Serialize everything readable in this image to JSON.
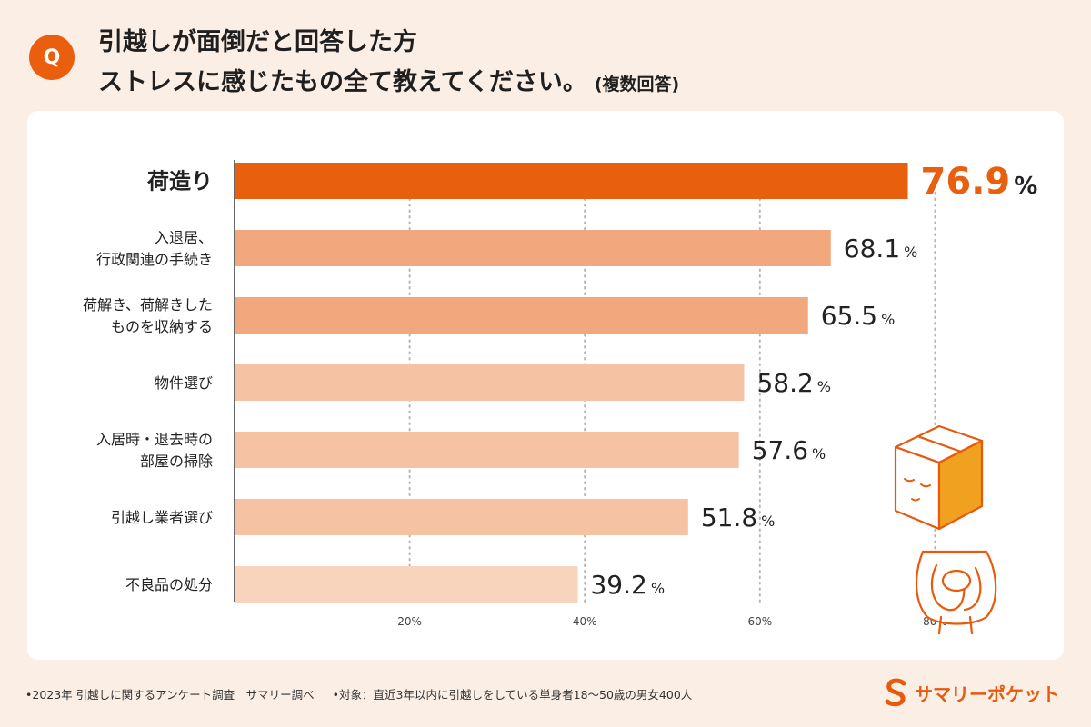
{
  "question": {
    "badge": "Q",
    "line1": "引越しが面倒だと回答した方",
    "line2": "ストレスに感じたもの全て教えてください。",
    "note": "(複数回答)"
  },
  "chart_data": {
    "type": "bar",
    "orientation": "horizontal",
    "title": "引越しが面倒だと回答した方 ストレスに感じたもの全て教えてください。(複数回答)",
    "categories": [
      [
        "荷造り"
      ],
      [
        "入退居、",
        "行政関連の手続き"
      ],
      [
        "荷解き、荷解きした",
        "ものを収納する"
      ],
      [
        "物件選び"
      ],
      [
        "入居時・退去時の",
        "部屋の掃除"
      ],
      [
        "引越し業者選び"
      ],
      [
        "不良品の処分"
      ]
    ],
    "values": [
      76.9,
      68.1,
      65.5,
      58.2,
      57.6,
      51.8,
      39.2
    ],
    "value_labels": [
      "76.9",
      "68.1",
      "65.5",
      "58.2",
      "57.6",
      "51.8",
      "39.2"
    ],
    "unit": "%",
    "xlim": [
      0,
      80
    ],
    "ticks": [
      20,
      40,
      60,
      80
    ],
    "tick_labels": [
      "20%",
      "40%",
      "60%",
      "80%"
    ],
    "grid": "dotted-vertical",
    "colors": [
      "#e8600e",
      "#f0a87c",
      "#f0a87c",
      "#f5c3a3",
      "#f5c3a3",
      "#f5c3a3",
      "#f8d4bc"
    ],
    "highlight_color": "#e8600e"
  },
  "footer": {
    "source": "•2023年 引越しに関するアンケート調査　サマリー調べ",
    "target": "•対象：直近3年以内に引越しをしている単身者18〜50歳の男女400人"
  },
  "brand": {
    "name": "サマリーポケット",
    "color": "#e8590c"
  },
  "illustration": {
    "name": "box-head character hugging knees"
  }
}
